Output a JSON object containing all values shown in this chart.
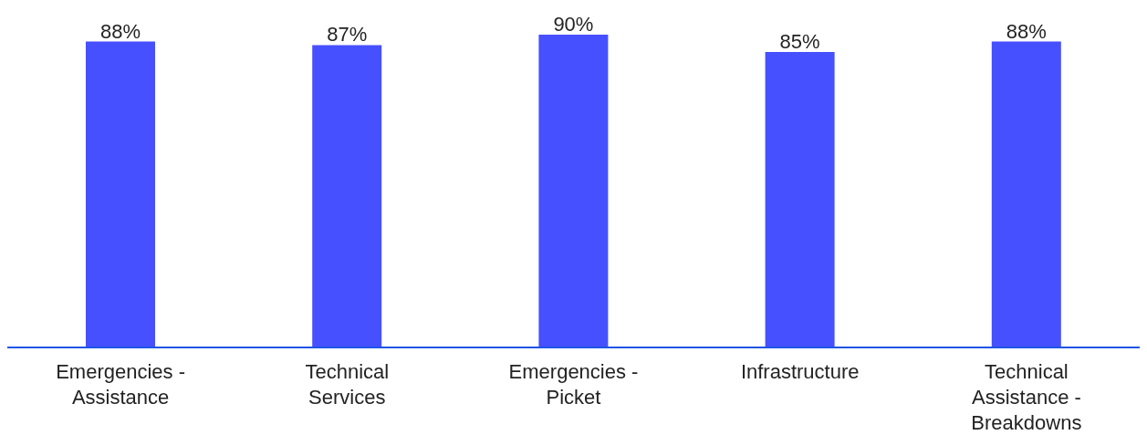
{
  "chart_data": {
    "type": "bar",
    "categories": [
      "Emergencies - Assistance",
      "Technical Services",
      "Emergencies - Picket",
      "Infrastructure",
      "Technical Assistance - Breakdowns"
    ],
    "values": [
      88,
      87,
      90,
      85,
      88
    ],
    "value_labels": [
      "88%",
      "87%",
      "90%",
      "85%",
      "88%"
    ],
    "color": "#4650ff",
    "grid": false,
    "legend": false
  }
}
